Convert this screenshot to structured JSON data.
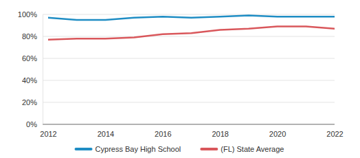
{
  "chart_data": {
    "type": "line",
    "x": [
      2012,
      2013,
      2014,
      2015,
      2016,
      2017,
      2018,
      2019,
      2020,
      2021,
      2022
    ],
    "series": [
      {
        "name": "Cypress Bay High School",
        "color": "#1f8dc4",
        "values": [
          97,
          95,
          95,
          97,
          98,
          97,
          98,
          99,
          98,
          98,
          98
        ]
      },
      {
        "name": "(FL) State Average",
        "color": "#d9575b",
        "values": [
          77,
          78,
          78,
          79,
          82,
          83,
          86,
          87,
          89,
          89,
          87
        ]
      }
    ],
    "xlim": [
      2012,
      2022
    ],
    "xticks": [
      2012,
      2014,
      2016,
      2018,
      2020,
      2022
    ],
    "ylim": [
      0,
      100
    ],
    "yticks": [
      {
        "value": 0,
        "label": "0%"
      },
      {
        "value": 20,
        "label": "20%"
      },
      {
        "value": 40,
        "label": "40%"
      },
      {
        "value": 60,
        "label": "60%"
      },
      {
        "value": 80,
        "label": "80%"
      },
      {
        "value": 100,
        "label": "100%"
      }
    ],
    "grid": true,
    "legend": "bottom"
  }
}
